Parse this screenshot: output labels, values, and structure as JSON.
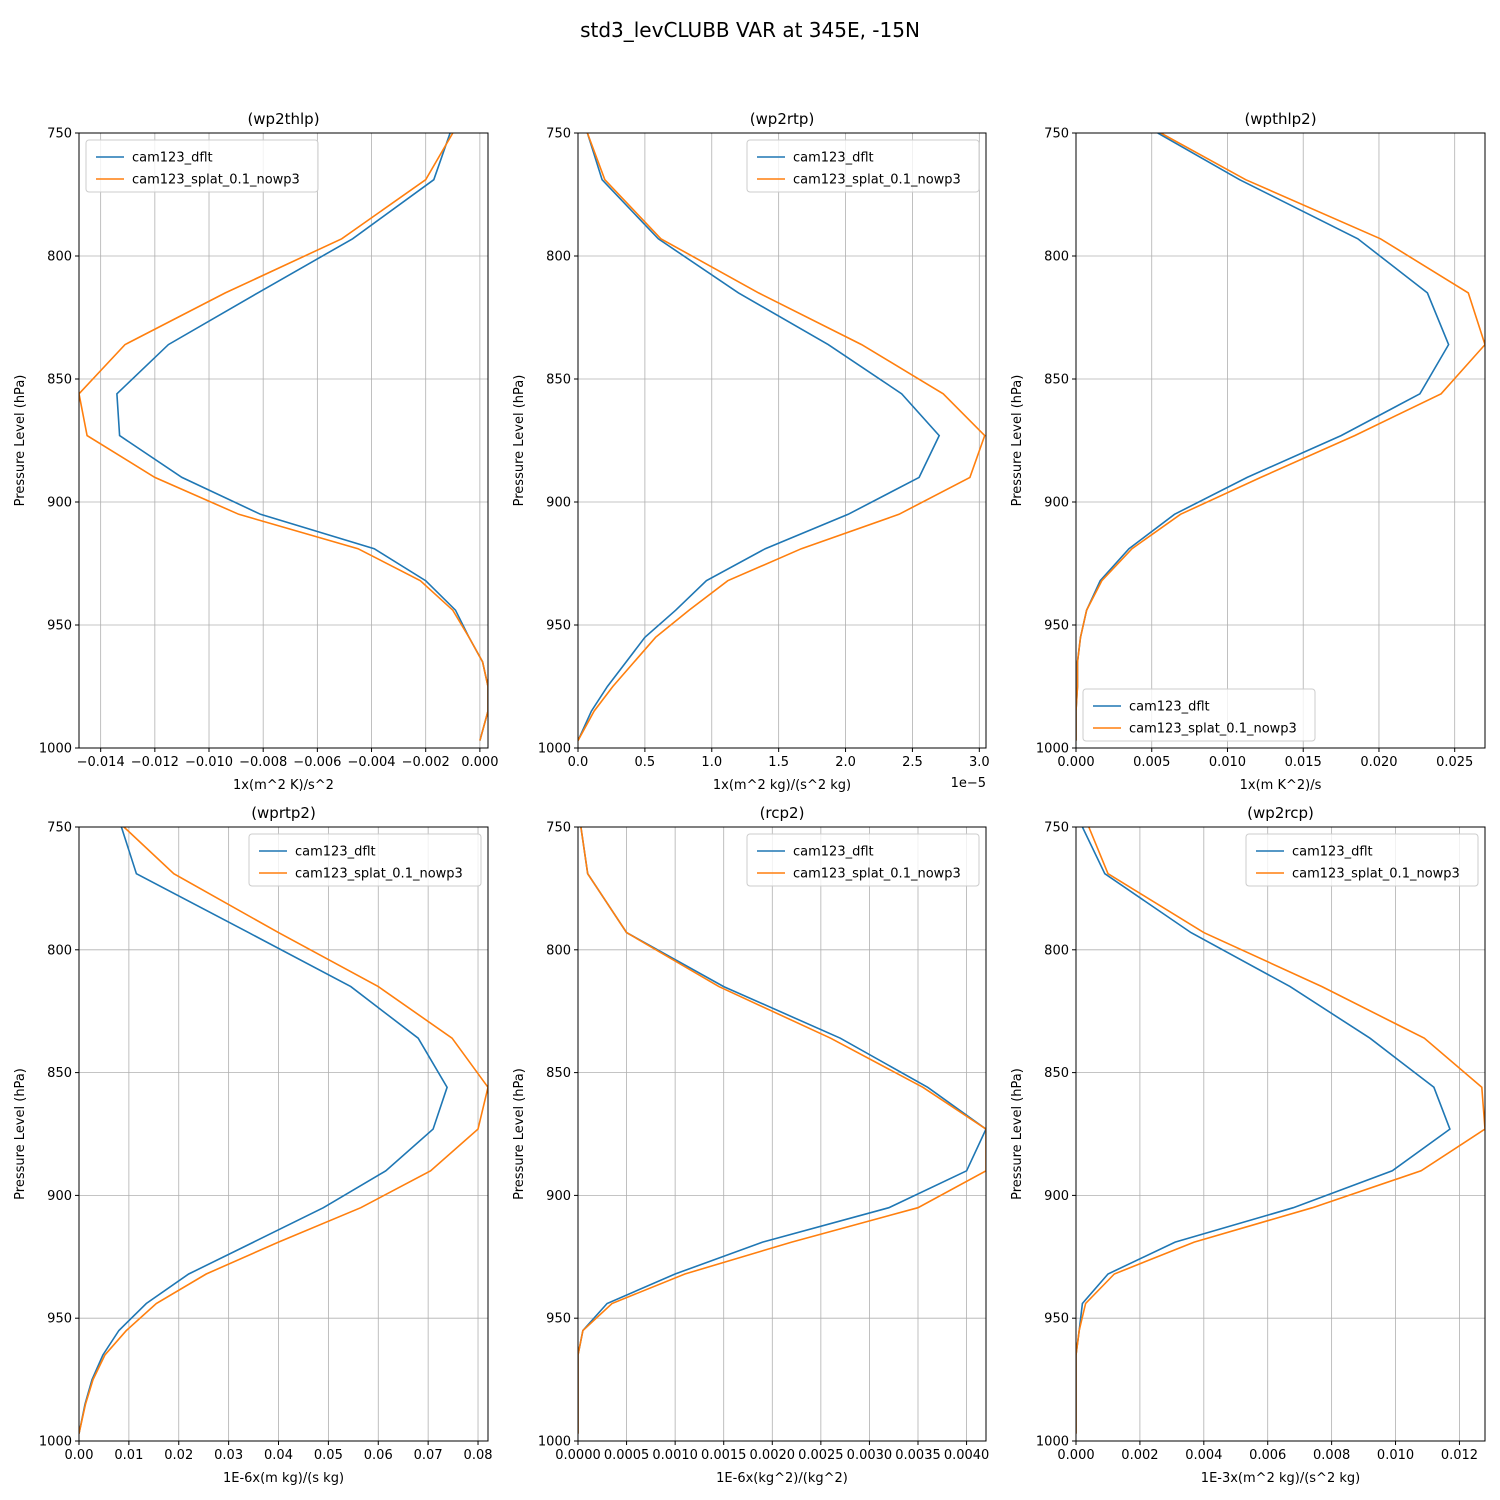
{
  "suptitle": "std3_levCLUBB VAR at 345E, -15N",
  "colors": {
    "cam123_dflt": "#1f77b4",
    "cam123_splat_0.1_nowp3": "#ff7f0e"
  },
  "chart_data": [
    {
      "type": "line",
      "title": "(wp2thlp)",
      "xlabel": "1x(m^2 K)/s^2",
      "ylabel": "Pressure Level (hPa)",
      "xlim": [
        -0.0148,
        0.0003
      ],
      "ylim": [
        1000,
        750
      ],
      "xticks": [
        -0.014,
        -0.012,
        -0.01,
        -0.008,
        -0.006,
        -0.004,
        -0.002,
        0.0
      ],
      "xtick_labels": [
        "−0.014",
        "−0.012",
        "−0.010",
        "−0.008",
        "−0.006",
        "−0.004",
        "−0.002",
        "0.000"
      ],
      "yticks": [
        750,
        800,
        850,
        900,
        950,
        1000
      ],
      "ytick_labels": [
        "750",
        "800",
        "850",
        "900",
        "950",
        "1000"
      ],
      "x_multiplier": "",
      "legend": "upper left",
      "series": [
        {
          "name": "cam123_dflt",
          "color": "#1f77b4",
          "x": [
            -0.0011,
            -0.0017,
            -0.0047,
            -0.0082,
            -0.0115,
            -0.0134,
            -0.0133,
            -0.011,
            -0.0081,
            -0.0039,
            -0.002,
            -0.0009,
            -0.0004,
            0.0001,
            0.0003,
            0.0003,
            0.0
          ],
          "y": [
            750,
            769,
            793,
            815,
            836,
            856,
            873,
            890,
            905,
            919,
            932,
            944,
            955,
            965,
            975,
            985,
            997
          ]
        },
        {
          "name": "cam123_splat_0.1_nowp3",
          "color": "#ff7f0e",
          "x": [
            -0.001,
            -0.002,
            -0.0051,
            -0.0094,
            -0.0131,
            -0.0148,
            -0.0145,
            -0.012,
            -0.0089,
            -0.0045,
            -0.0022,
            -0.001,
            -0.0004,
            0.0001,
            0.0003,
            0.0003,
            0.0
          ],
          "y": [
            750,
            769,
            793,
            815,
            836,
            856,
            873,
            890,
            905,
            919,
            932,
            944,
            955,
            965,
            975,
            985,
            997
          ]
        }
      ]
    },
    {
      "type": "line",
      "title": "(wp2rtp)",
      "xlabel": "1x(m^2 kg)/(s^2 kg)",
      "ylabel": "Pressure Level (hPa)",
      "xlim": [
        0,
        3.05
      ],
      "ylim": [
        1000,
        750
      ],
      "xticks": [
        0.0,
        0.5,
        1.0,
        1.5,
        2.0,
        2.5,
        3.0
      ],
      "xtick_labels": [
        "0.0",
        "0.5",
        "1.0",
        "1.5",
        "2.0",
        "2.5",
        "3.0"
      ],
      "yticks": [
        750,
        800,
        850,
        900,
        950,
        1000
      ],
      "ytick_labels": [
        "750",
        "800",
        "850",
        "900",
        "950",
        "1000"
      ],
      "x_multiplier": "1e−5",
      "legend": "upper right",
      "series": [
        {
          "name": "cam123_dflt",
          "color": "#1f77b4",
          "x": [
            0.07,
            0.18,
            0.6,
            1.2,
            1.87,
            2.42,
            2.7,
            2.55,
            2.02,
            1.4,
            0.96,
            0.73,
            0.5,
            0.36,
            0.22,
            0.1,
            0.0
          ],
          "y": [
            750,
            769,
            793,
            815,
            836,
            856,
            873,
            890,
            905,
            919,
            932,
            944,
            955,
            965,
            975,
            985,
            997
          ]
        },
        {
          "name": "cam123_splat_0.1_nowp3",
          "color": "#ff7f0e",
          "x": [
            0.07,
            0.2,
            0.62,
            1.35,
            2.12,
            2.73,
            3.04,
            2.93,
            2.4,
            1.67,
            1.12,
            0.83,
            0.58,
            0.42,
            0.26,
            0.12,
            0.0
          ],
          "y": [
            750,
            769,
            793,
            815,
            836,
            856,
            873,
            890,
            905,
            919,
            932,
            944,
            955,
            965,
            975,
            985,
            997
          ]
        }
      ]
    },
    {
      "type": "line",
      "title": "(wpthlp2)",
      "xlabel": "1x(m K^2)/s",
      "ylabel": "Pressure Level (hPa)",
      "xlim": [
        0,
        0.027
      ],
      "ylim": [
        1000,
        750
      ],
      "xticks": [
        0.0,
        0.005,
        0.01,
        0.015,
        0.02,
        0.025
      ],
      "xtick_labels": [
        "0.000",
        "0.005",
        "0.010",
        "0.015",
        "0.020",
        "0.025"
      ],
      "yticks": [
        750,
        800,
        850,
        900,
        950,
        1000
      ],
      "ytick_labels": [
        "750",
        "800",
        "850",
        "900",
        "950",
        "1000"
      ],
      "x_multiplier": "",
      "legend": "lower left",
      "series": [
        {
          "name": "cam123_dflt",
          "color": "#1f77b4",
          "x": [
            0.0054,
            0.0108,
            0.0186,
            0.0232,
            0.0246,
            0.0227,
            0.0175,
            0.0113,
            0.0065,
            0.0035,
            0.0016,
            0.0007,
            0.0003,
            0.0001,
            0.0001,
            0.0,
            0.0
          ],
          "y": [
            750,
            769,
            793,
            815,
            836,
            856,
            873,
            890,
            905,
            919,
            932,
            944,
            955,
            965,
            975,
            985,
            997
          ]
        },
        {
          "name": "cam123_splat_0.1_nowp3",
          "color": "#ff7f0e",
          "x": [
            0.0056,
            0.0112,
            0.0201,
            0.0259,
            0.027,
            0.0241,
            0.0184,
            0.0122,
            0.0069,
            0.0037,
            0.0017,
            0.0007,
            0.0003,
            0.0001,
            0.0001,
            0.0,
            0.0
          ],
          "y": [
            750,
            769,
            793,
            815,
            836,
            856,
            873,
            890,
            905,
            919,
            932,
            944,
            955,
            965,
            975,
            985,
            997
          ]
        }
      ]
    },
    {
      "type": "line",
      "title": "(wprtp2)",
      "xlabel": "1E-6x(m kg)/(s kg)",
      "ylabel": "Pressure Level (hPa)",
      "xlim": [
        0,
        0.082
      ],
      "ylim": [
        1000,
        750
      ],
      "xticks": [
        0.0,
        0.01,
        0.02,
        0.03,
        0.04,
        0.05,
        0.06,
        0.07,
        0.08
      ],
      "xtick_labels": [
        "0.00",
        "0.01",
        "0.02",
        "0.03",
        "0.04",
        "0.05",
        "0.06",
        "0.07",
        "0.08"
      ],
      "yticks": [
        750,
        800,
        850,
        900,
        950,
        1000
      ],
      "ytick_labels": [
        "750",
        "800",
        "850",
        "900",
        "950",
        "1000"
      ],
      "x_multiplier": "",
      "legend": "upper right",
      "series": [
        {
          "name": "cam123_dflt",
          "color": "#1f77b4",
          "x": [
            0.0085,
            0.0115,
            0.034,
            0.0545,
            0.068,
            0.0738,
            0.071,
            0.0615,
            0.049,
            0.035,
            0.022,
            0.0135,
            0.008,
            0.0048,
            0.0026,
            0.0012,
            0.0
          ],
          "y": [
            750,
            769,
            793,
            815,
            836,
            856,
            873,
            890,
            905,
            919,
            932,
            944,
            955,
            965,
            975,
            985,
            997
          ]
        },
        {
          "name": "cam123_splat_0.1_nowp3",
          "color": "#ff7f0e",
          "x": [
            0.009,
            0.019,
            0.04,
            0.06,
            0.0748,
            0.082,
            0.08,
            0.0705,
            0.0565,
            0.04,
            0.0255,
            0.0155,
            0.0095,
            0.0052,
            0.0028,
            0.0013,
            0.0
          ],
          "y": [
            750,
            769,
            793,
            815,
            836,
            856,
            873,
            890,
            905,
            919,
            932,
            944,
            955,
            965,
            975,
            985,
            997
          ]
        }
      ]
    },
    {
      "type": "line",
      "title": "(rcp2)",
      "xlabel": "1E-6x(kg^2)/(kg^2)",
      "ylabel": "Pressure Level (hPa)",
      "xlim": [
        0,
        0.0042
      ],
      "ylim": [
        1000,
        750
      ],
      "xticks": [
        0.0,
        0.0005,
        0.001,
        0.0015,
        0.002,
        0.0025,
        0.003,
        0.0035,
        0.004
      ],
      "xtick_labels": [
        "0.0000",
        "0.0005",
        "0.0010",
        "0.0015",
        "0.0020",
        "0.0025",
        "0.0030",
        "0.0035",
        "0.0040"
      ],
      "yticks": [
        750,
        800,
        850,
        900,
        950,
        1000
      ],
      "ytick_labels": [
        "750",
        "800",
        "850",
        "900",
        "950",
        "1000"
      ],
      "x_multiplier": "",
      "legend": "upper right",
      "series": [
        {
          "name": "cam123_dflt",
          "color": "#1f77b4",
          "x": [
            3e-05,
            0.0001,
            0.0005,
            0.0015,
            0.0027,
            0.0036,
            0.0042,
            0.004,
            0.0032,
            0.0019,
            0.001,
            0.0003,
            5e-05,
            0.0,
            0.0,
            0.0,
            0.0
          ],
          "y": [
            750,
            769,
            793,
            815,
            836,
            856,
            873,
            890,
            905,
            919,
            932,
            944,
            955,
            965,
            975,
            985,
            997
          ]
        },
        {
          "name": "cam123_splat_0.1_nowp3",
          "color": "#ff7f0e",
          "x": [
            3e-05,
            0.0001,
            0.0005,
            0.00145,
            0.0026,
            0.00355,
            0.0042,
            0.0042,
            0.0035,
            0.0022,
            0.0011,
            0.00035,
            5e-05,
            0.0,
            0.0,
            0.0,
            0.0
          ],
          "y": [
            750,
            769,
            793,
            815,
            836,
            856,
            873,
            890,
            905,
            919,
            932,
            944,
            955,
            965,
            975,
            985,
            997
          ]
        }
      ]
    },
    {
      "type": "line",
      "title": "(wp2rcp)",
      "xlabel": "1E-3x(m^2 kg)/(s^2 kg)",
      "ylabel": "Pressure Level (hPa)",
      "xlim": [
        0,
        0.0128
      ],
      "ylim": [
        1000,
        750
      ],
      "xticks": [
        0.0,
        0.002,
        0.004,
        0.006,
        0.008,
        0.01,
        0.012
      ],
      "xtick_labels": [
        "0.000",
        "0.002",
        "0.004",
        "0.006",
        "0.008",
        "0.010",
        "0.012"
      ],
      "yticks": [
        750,
        800,
        850,
        900,
        950,
        1000
      ],
      "ytick_labels": [
        "750",
        "800",
        "850",
        "900",
        "950",
        "1000"
      ],
      "x_multiplier": "",
      "legend": "upper right",
      "series": [
        {
          "name": "cam123_dflt",
          "color": "#1f77b4",
          "x": [
            0.0002,
            0.0009,
            0.0036,
            0.0067,
            0.0092,
            0.0112,
            0.0117,
            0.0099,
            0.0068,
            0.0031,
            0.001,
            0.0002,
            0.0001,
            0.0,
            0.0,
            0.0,
            0.0
          ],
          "y": [
            750,
            769,
            793,
            815,
            836,
            856,
            873,
            890,
            905,
            919,
            932,
            944,
            955,
            965,
            975,
            985,
            997
          ]
        },
        {
          "name": "cam123_splat_0.1_nowp3",
          "color": "#ff7f0e",
          "x": [
            0.0004,
            0.001,
            0.004,
            0.0077,
            0.0109,
            0.0127,
            0.0128,
            0.0108,
            0.0074,
            0.0037,
            0.0012,
            0.0003,
            0.0001,
            0.0,
            0.0,
            0.0,
            0.0
          ],
          "y": [
            750,
            769,
            793,
            815,
            836,
            856,
            873,
            890,
            905,
            919,
            932,
            944,
            955,
            965,
            975,
            985,
            997
          ]
        }
      ]
    }
  ]
}
